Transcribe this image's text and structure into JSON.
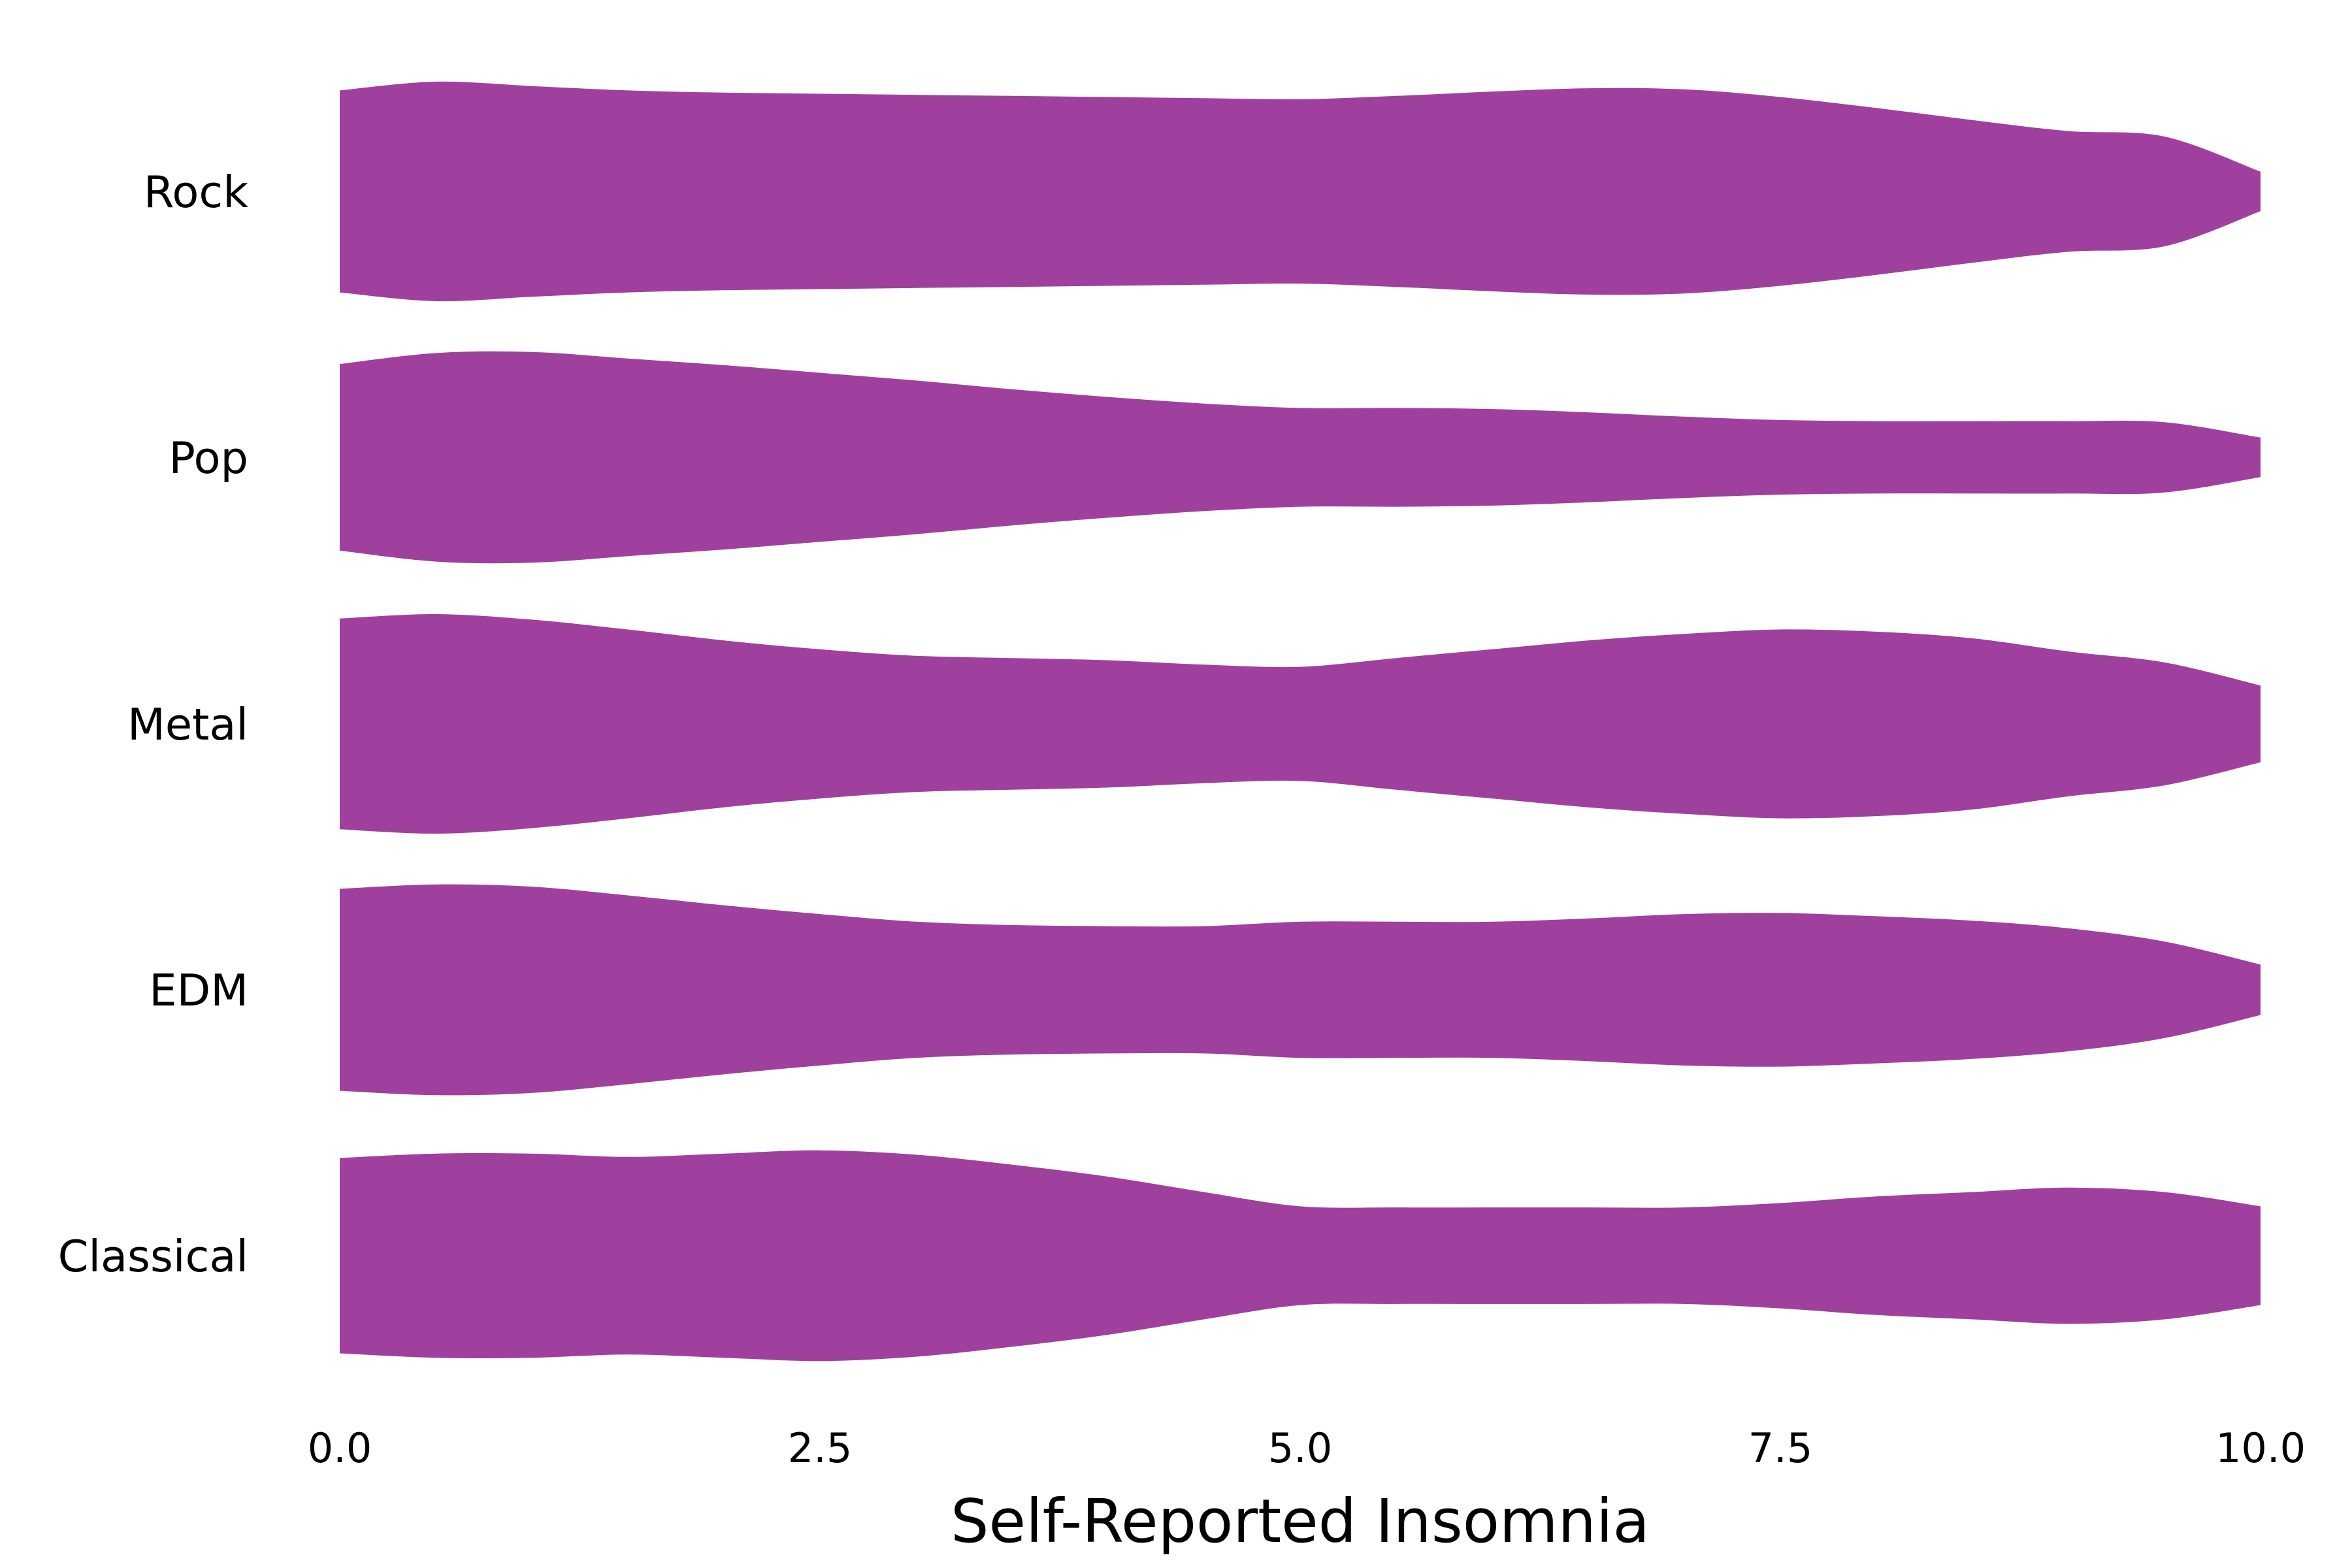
{
  "chart_data": {
    "type": "violin",
    "orientation": "horizontal",
    "xlabel": "Self-Reported Insomnia",
    "ylabel": "",
    "title": "",
    "xlim": [
      0,
      10
    ],
    "xticks": [
      0,
      2.5,
      5,
      7.5,
      10
    ],
    "xtick_labels": [
      "0.0",
      "2.5",
      "5.0",
      "7.5",
      "10.0"
    ],
    "grid": false,
    "color": "#a0409e",
    "density_x": [
      0,
      0.5,
      1,
      1.5,
      2,
      2.5,
      3,
      3.5,
      4,
      4.5,
      5,
      5.5,
      6,
      6.5,
      7,
      7.5,
      8,
      8.5,
      9,
      9.5,
      10
    ],
    "categories": [
      "Rock",
      "Pop",
      "Metal",
      "EDM",
      "Classical"
    ],
    "series": [
      {
        "name": "Rock",
        "values": [
          0.92,
          1.0,
          0.96,
          0.92,
          0.9,
          0.89,
          0.88,
          0.87,
          0.86,
          0.85,
          0.84,
          0.87,
          0.91,
          0.94,
          0.93,
          0.86,
          0.76,
          0.65,
          0.55,
          0.5,
          0.18
        ]
      },
      {
        "name": "Pop",
        "values": [
          0.85,
          0.95,
          0.96,
          0.9,
          0.84,
          0.77,
          0.7,
          0.62,
          0.55,
          0.49,
          0.45,
          0.45,
          0.44,
          0.41,
          0.37,
          0.34,
          0.33,
          0.33,
          0.33,
          0.32,
          0.18
        ]
      },
      {
        "name": "Metal",
        "values": [
          0.96,
          1.0,
          0.95,
          0.86,
          0.76,
          0.68,
          0.62,
          0.6,
          0.58,
          0.54,
          0.52,
          0.6,
          0.68,
          0.76,
          0.82,
          0.86,
          0.84,
          0.78,
          0.66,
          0.56,
          0.35
        ]
      },
      {
        "name": "EDM",
        "values": [
          0.92,
          0.96,
          0.94,
          0.86,
          0.77,
          0.69,
          0.62,
          0.59,
          0.58,
          0.58,
          0.62,
          0.62,
          0.62,
          0.65,
          0.69,
          0.7,
          0.67,
          0.63,
          0.56,
          0.44,
          0.23
        ]
      },
      {
        "name": "Classical",
        "values": [
          0.89,
          0.93,
          0.93,
          0.9,
          0.93,
          0.96,
          0.92,
          0.83,
          0.72,
          0.58,
          0.45,
          0.44,
          0.44,
          0.44,
          0.44,
          0.48,
          0.54,
          0.58,
          0.62,
          0.58,
          0.45
        ]
      }
    ]
  }
}
